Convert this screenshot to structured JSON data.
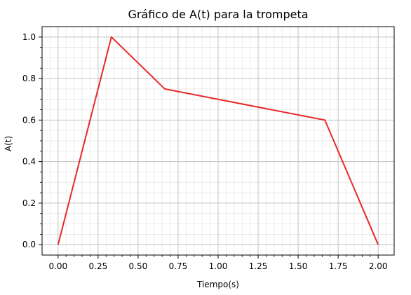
{
  "chart_data": {
    "type": "line",
    "title": "Gráfico de A(t) para la trompeta",
    "xlabel": "Tiempo(s)",
    "ylabel": "A(t)",
    "xlim": [
      -0.1,
      2.1
    ],
    "ylim": [
      -0.05,
      1.05
    ],
    "xticks": [
      "0.00",
      "0.25",
      "0.50",
      "0.75",
      "1.00",
      "1.25",
      "1.50",
      "1.75",
      "2.00"
    ],
    "yticks": [
      "0.0",
      "0.2",
      "0.4",
      "0.6",
      "0.8",
      "1.0"
    ],
    "grid": true,
    "minor_grid": true,
    "series": [
      {
        "color": "#e8292a",
        "x": [
          0.0,
          0.333,
          0.667,
          1.667,
          2.0
        ],
        "y": [
          0.0,
          1.0,
          0.75,
          0.6,
          0.0
        ]
      }
    ]
  }
}
